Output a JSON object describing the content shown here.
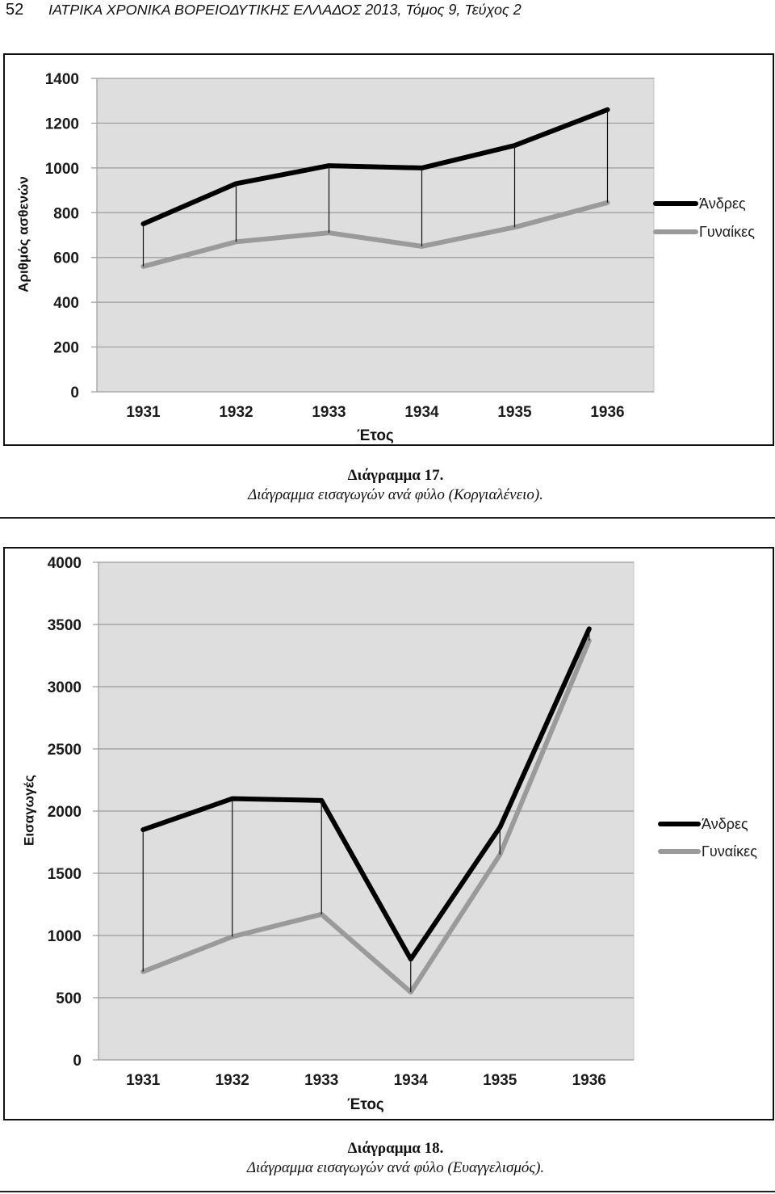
{
  "header": {
    "page_number": "52",
    "journal": "ΙΑΤΡΙΚΑ ΧΡΟΝΙΚΑ ΒΟΡΕΙΟΔΥΤΙΚΗΣ ΕΛΛΑΔΟΣ 2013, Τόμος 9, Τεύχος 2"
  },
  "figures": [
    {
      "caption_number": "Διάγραμμα 17.",
      "caption_text": "Διάγραμμα εισαγωγών ανά φύλο (Κοργιαλένειο)."
    },
    {
      "caption_number": "Διάγραμμα 18.",
      "caption_text": "Διάγραμμα εισαγωγών ανά φύλο (Ευαγγελισμός)."
    }
  ],
  "chart_data": [
    {
      "type": "line",
      "xlabel": "Έτος",
      "ylabel": "Αριθμός ασθενών",
      "categories": [
        "1931",
        "1932",
        "1933",
        "1934",
        "1935",
        "1936"
      ],
      "series": [
        {
          "name": "Άνδρες",
          "values": [
            750,
            930,
            1010,
            1000,
            1100,
            1260
          ],
          "color": "#000000"
        },
        {
          "name": "Γυναίκες",
          "values": [
            560,
            670,
            710,
            650,
            735,
            845
          ],
          "color": "#9a9a9a"
        }
      ],
      "ylim": [
        0,
        1400
      ],
      "yticks": [
        0,
        200,
        400,
        600,
        800,
        1000,
        1200,
        1400
      ],
      "grid": true,
      "legend": "right",
      "high_low_lines": true,
      "plot_background": "#dedede"
    },
    {
      "type": "line",
      "xlabel": "Έτος",
      "ylabel": "Εισαγωγές",
      "categories": [
        "1931",
        "1932",
        "1933",
        "1934",
        "1935",
        "1936"
      ],
      "series": [
        {
          "name": "Άνδρες",
          "values": [
            1850,
            2100,
            2085,
            810,
            1870,
            3465
          ],
          "color": "#000000"
        },
        {
          "name": "Γυναίκες",
          "values": [
            710,
            990,
            1170,
            545,
            1650,
            3370
          ],
          "color": "#9a9a9a"
        }
      ],
      "ylim": [
        0,
        4000
      ],
      "yticks": [
        0,
        500,
        1000,
        1500,
        2000,
        2500,
        3000,
        3500,
        4000
      ],
      "grid": true,
      "legend": "right",
      "high_low_lines": true,
      "plot_background": "#dedede"
    }
  ]
}
